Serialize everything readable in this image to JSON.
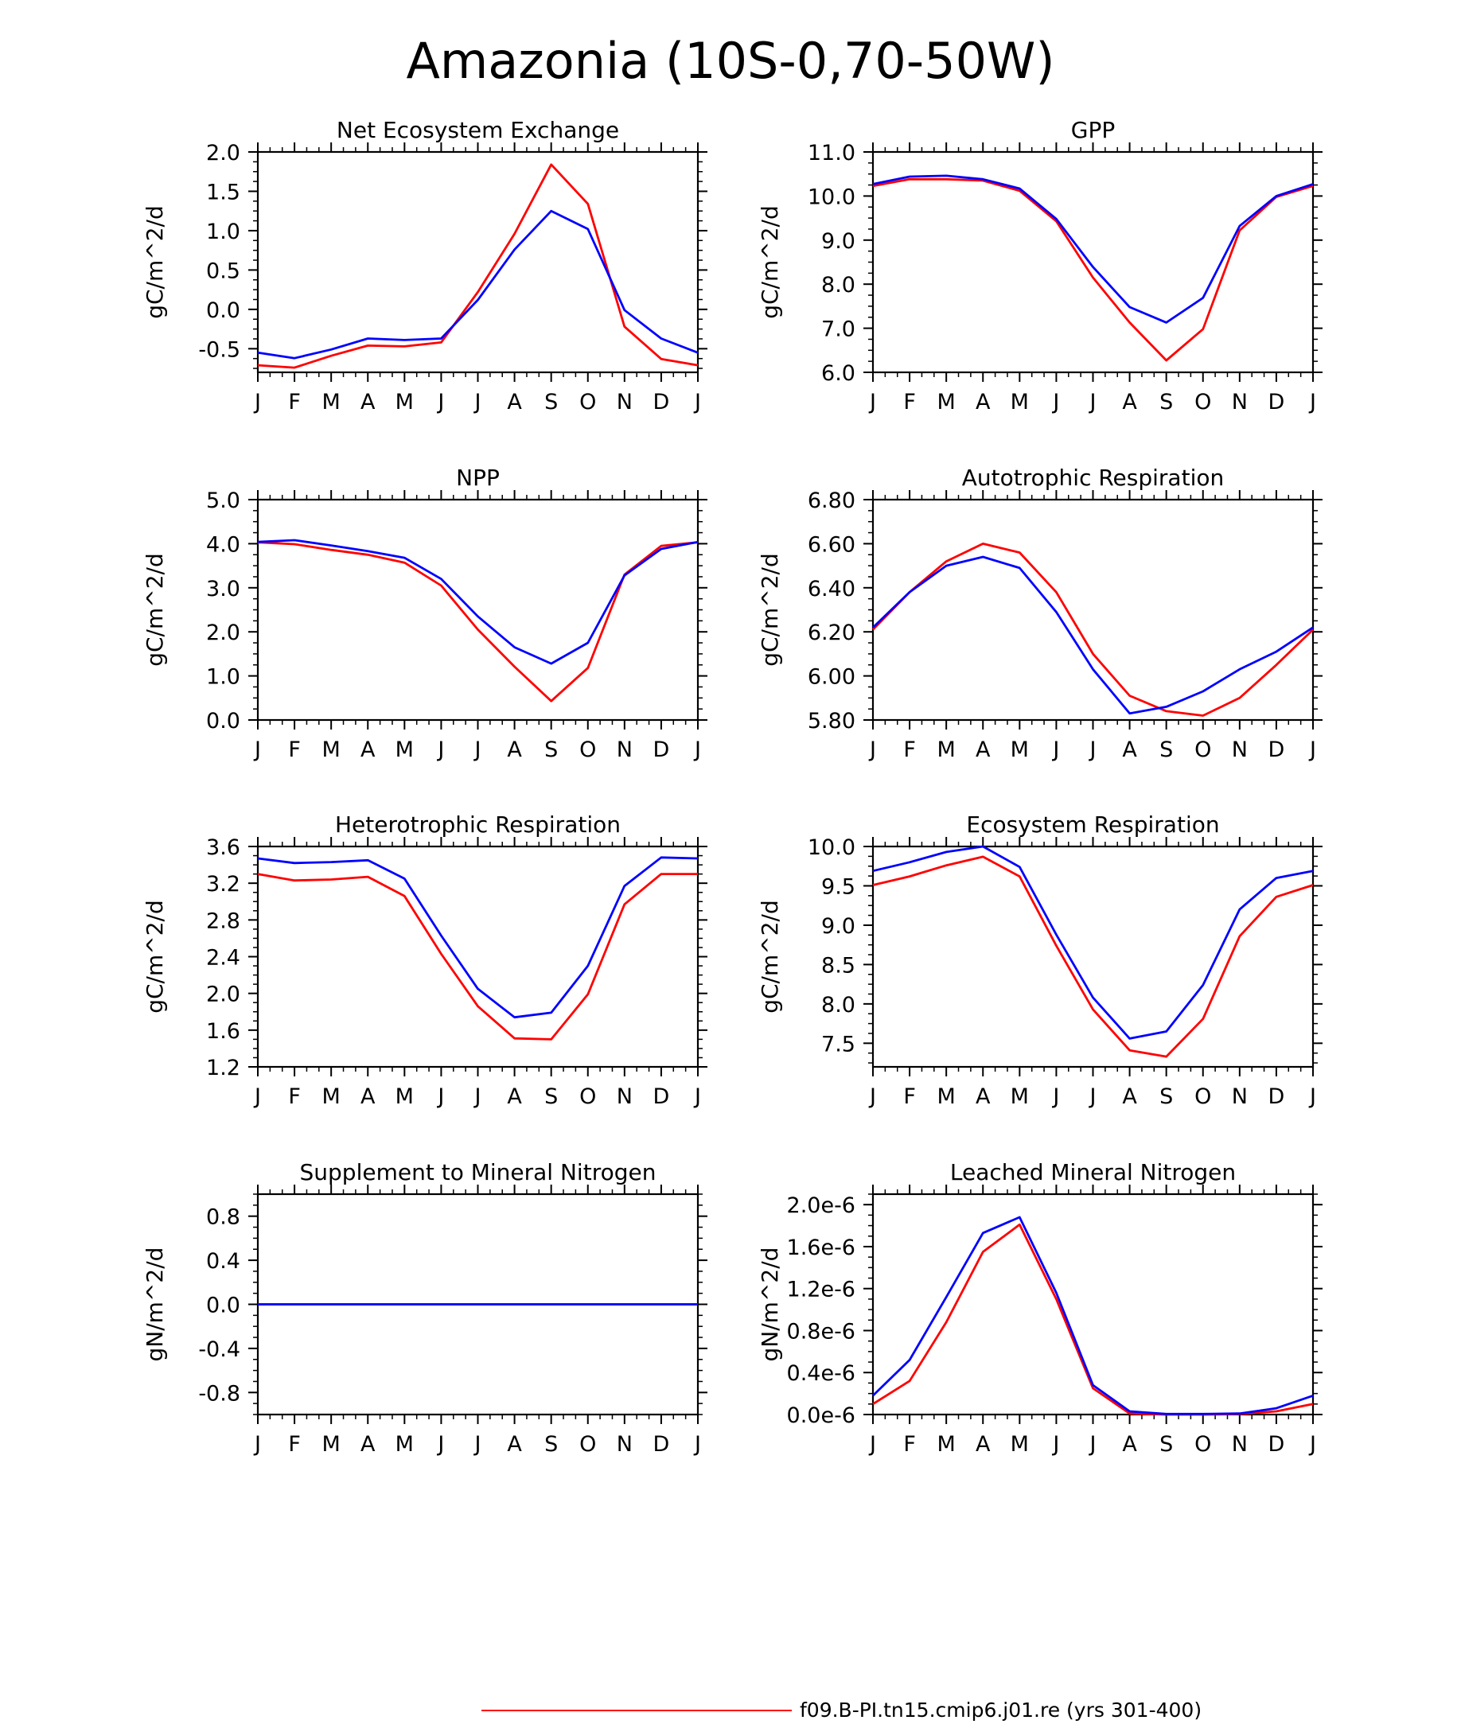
{
  "page_title": "Amazonia (10S-0,70-50W)",
  "colors": {
    "case1": "#ff0000",
    "case2": "#0000ff",
    "axis": "#000000"
  },
  "legend": [
    {
      "label": "f09.B-PI.tn15.cmip6.j01.re (yrs 301-400)",
      "color": "#ff0000"
    }
  ],
  "chart_data": [
    {
      "type": "line",
      "title": "Net Ecosystem Exchange",
      "ylabel": "gC/m^2/d",
      "categories": [
        "J",
        "F",
        "M",
        "A",
        "M",
        "J",
        "J",
        "A",
        "S",
        "O",
        "N",
        "D",
        "J"
      ],
      "ylim": [
        -0.8,
        2.0
      ],
      "yticks": [
        -0.5,
        0.0,
        0.5,
        1.0,
        1.5,
        2.0
      ],
      "yticklabels": [
        "-0.5",
        "0.0",
        "0.5",
        "1.0",
        "1.5",
        "2.0"
      ],
      "series": [
        {
          "color": "#ff0000",
          "values": [
            -0.71,
            -0.74,
            -0.59,
            -0.46,
            -0.47,
            -0.42,
            0.22,
            0.96,
            1.84,
            1.34,
            -0.22,
            -0.63,
            -0.71
          ]
        },
        {
          "color": "#0000ff",
          "values": [
            -0.55,
            -0.62,
            -0.51,
            -0.37,
            -0.39,
            -0.37,
            0.12,
            0.76,
            1.25,
            1.02,
            -0.01,
            -0.37,
            -0.55
          ]
        }
      ]
    },
    {
      "type": "line",
      "title": "GPP",
      "ylabel": "gC/m^2/d",
      "categories": [
        "J",
        "F",
        "M",
        "A",
        "M",
        "J",
        "J",
        "A",
        "S",
        "O",
        "N",
        "D",
        "J"
      ],
      "ylim": [
        6.0,
        11.0
      ],
      "yticks": [
        6.0,
        7.0,
        8.0,
        9.0,
        10.0,
        11.0
      ],
      "yticklabels": [
        "6.0",
        "7.0",
        "8.0",
        "9.0",
        "10.0",
        "11.0"
      ],
      "series": [
        {
          "color": "#ff0000",
          "values": [
            10.23,
            10.38,
            10.38,
            10.35,
            10.12,
            9.43,
            8.15,
            7.13,
            6.27,
            6.98,
            9.22,
            9.98,
            10.23
          ]
        },
        {
          "color": "#0000ff",
          "values": [
            10.27,
            10.44,
            10.46,
            10.38,
            10.17,
            9.48,
            8.39,
            7.48,
            7.13,
            7.69,
            9.32,
            10.0,
            10.27
          ]
        }
      ]
    },
    {
      "type": "line",
      "title": "NPP",
      "ylabel": "gC/m^2/d",
      "categories": [
        "J",
        "F",
        "M",
        "A",
        "M",
        "J",
        "J",
        "A",
        "S",
        "O",
        "N",
        "D",
        "J"
      ],
      "ylim": [
        0.0,
        5.0
      ],
      "yticks": [
        0.0,
        1.0,
        2.0,
        3.0,
        4.0,
        5.0
      ],
      "yticklabels": [
        "0.0",
        "1.0",
        "2.0",
        "3.0",
        "4.0",
        "5.0"
      ],
      "series": [
        {
          "color": "#ff0000",
          "values": [
            4.03,
            3.99,
            3.86,
            3.75,
            3.57,
            3.05,
            2.05,
            1.21,
            0.43,
            1.18,
            3.3,
            3.95,
            4.03
          ]
        },
        {
          "color": "#0000ff",
          "values": [
            4.04,
            4.08,
            3.96,
            3.83,
            3.68,
            3.2,
            2.35,
            1.65,
            1.28,
            1.75,
            3.28,
            3.88,
            4.04
          ]
        }
      ]
    },
    {
      "type": "line",
      "title": "Autotrophic Respiration",
      "ylabel": "gC/m^2/d",
      "categories": [
        "J",
        "F",
        "M",
        "A",
        "M",
        "J",
        "J",
        "A",
        "S",
        "O",
        "N",
        "D",
        "J"
      ],
      "ylim": [
        5.8,
        6.8
      ],
      "yticks": [
        5.8,
        6.0,
        6.2,
        6.4,
        6.6,
        6.8
      ],
      "yticklabels": [
        "5.80",
        "6.00",
        "6.20",
        "6.40",
        "6.60",
        "6.80"
      ],
      "series": [
        {
          "color": "#ff0000",
          "values": [
            6.21,
            6.38,
            6.52,
            6.6,
            6.56,
            6.38,
            6.1,
            5.91,
            5.84,
            5.82,
            5.9,
            6.05,
            6.21
          ]
        },
        {
          "color": "#0000ff",
          "values": [
            6.22,
            6.38,
            6.5,
            6.54,
            6.49,
            6.29,
            6.03,
            5.83,
            5.86,
            5.93,
            6.03,
            6.11,
            6.22
          ]
        }
      ]
    },
    {
      "type": "line",
      "title": "Heterotrophic Respiration",
      "ylabel": "gC/m^2/d",
      "categories": [
        "J",
        "F",
        "M",
        "A",
        "M",
        "J",
        "J",
        "A",
        "S",
        "O",
        "N",
        "D",
        "J"
      ],
      "ylim": [
        1.2,
        3.6
      ],
      "yticks": [
        1.2,
        1.6,
        2.0,
        2.4,
        2.8,
        3.2,
        3.6
      ],
      "yticklabels": [
        "1.2",
        "1.6",
        "2.0",
        "2.4",
        "2.8",
        "3.2",
        "3.6"
      ],
      "series": [
        {
          "color": "#ff0000",
          "values": [
            3.3,
            3.23,
            3.24,
            3.27,
            3.06,
            2.43,
            1.86,
            1.51,
            1.5,
            1.99,
            2.97,
            3.3,
            3.3
          ]
        },
        {
          "color": "#0000ff",
          "values": [
            3.47,
            3.42,
            3.43,
            3.45,
            3.25,
            2.63,
            2.05,
            1.74,
            1.79,
            2.3,
            3.17,
            3.48,
            3.47
          ]
        }
      ]
    },
    {
      "type": "line",
      "title": "Ecosystem Respiration",
      "ylabel": "gC/m^2/d",
      "categories": [
        "J",
        "F",
        "M",
        "A",
        "M",
        "J",
        "J",
        "A",
        "S",
        "O",
        "N",
        "D",
        "J"
      ],
      "ylim": [
        7.2,
        10.0
      ],
      "yticks": [
        7.5,
        8.0,
        8.5,
        9.0,
        9.5,
        10.0
      ],
      "yticklabels": [
        "7.5",
        "8.0",
        "8.5",
        "9.0",
        "9.5",
        "10.0"
      ],
      "series": [
        {
          "color": "#ff0000",
          "values": [
            9.51,
            9.62,
            9.76,
            9.87,
            9.62,
            8.74,
            7.93,
            7.41,
            7.33,
            7.81,
            8.86,
            9.36,
            9.51
          ]
        },
        {
          "color": "#0000ff",
          "values": [
            9.69,
            9.8,
            9.93,
            10.0,
            9.74,
            8.88,
            8.08,
            7.56,
            7.65,
            8.24,
            9.2,
            9.6,
            9.69
          ]
        }
      ]
    },
    {
      "type": "line",
      "title": "Supplement to Mineral Nitrogen",
      "ylabel": "gN/m^2/d",
      "categories": [
        "J",
        "F",
        "M",
        "A",
        "M",
        "J",
        "J",
        "A",
        "S",
        "O",
        "N",
        "D",
        "J"
      ],
      "ylim": [
        -1.0,
        1.0
      ],
      "yticks": [
        -0.8,
        -0.4,
        0.0,
        0.4,
        0.8
      ],
      "yticklabels": [
        "-0.8",
        "-0.4",
        "0.0",
        "0.4",
        "0.8"
      ],
      "series": [
        {
          "color": "#ff0000",
          "values": [
            0,
            0,
            0,
            0,
            0,
            0,
            0,
            0,
            0,
            0,
            0,
            0,
            0
          ]
        },
        {
          "color": "#0000ff",
          "values": [
            0,
            0,
            0,
            0,
            0,
            0,
            0,
            0,
            0,
            0,
            0,
            0,
            0
          ]
        }
      ]
    },
    {
      "type": "line",
      "title": "Leached Mineral Nitrogen",
      "ylabel": "gN/m^2/d",
      "categories": [
        "J",
        "F",
        "M",
        "A",
        "M",
        "J",
        "J",
        "A",
        "S",
        "O",
        "N",
        "D",
        "J"
      ],
      "ylim": [
        0.0,
        2.1e-06
      ],
      "yticks": [
        0.0,
        4e-07,
        8e-07,
        1.2e-06,
        1.6e-06,
        2e-06
      ],
      "yticklabels": [
        "0.0e-6",
        "0.4e-6",
        "0.8e-6",
        "1.2e-6",
        "1.6e-6",
        "2.0e-6"
      ],
      "series": [
        {
          "color": "#ff0000",
          "values": [
            1e-07,
            3.2e-07,
            8.8e-07,
            1.55e-06,
            1.81e-06,
            1.1e-06,
            2.5e-07,
            1e-08,
            0.0,
            0.0,
            5e-09,
            3e-08,
            1e-07
          ]
        },
        {
          "color": "#0000ff",
          "values": [
            1.8e-07,
            5.2e-07,
            1.12e-06,
            1.73e-06,
            1.88e-06,
            1.16e-06,
            2.8e-07,
            3e-08,
            5e-09,
            5e-09,
            1e-08,
            6e-08,
            1.8e-07
          ]
        }
      ]
    }
  ]
}
